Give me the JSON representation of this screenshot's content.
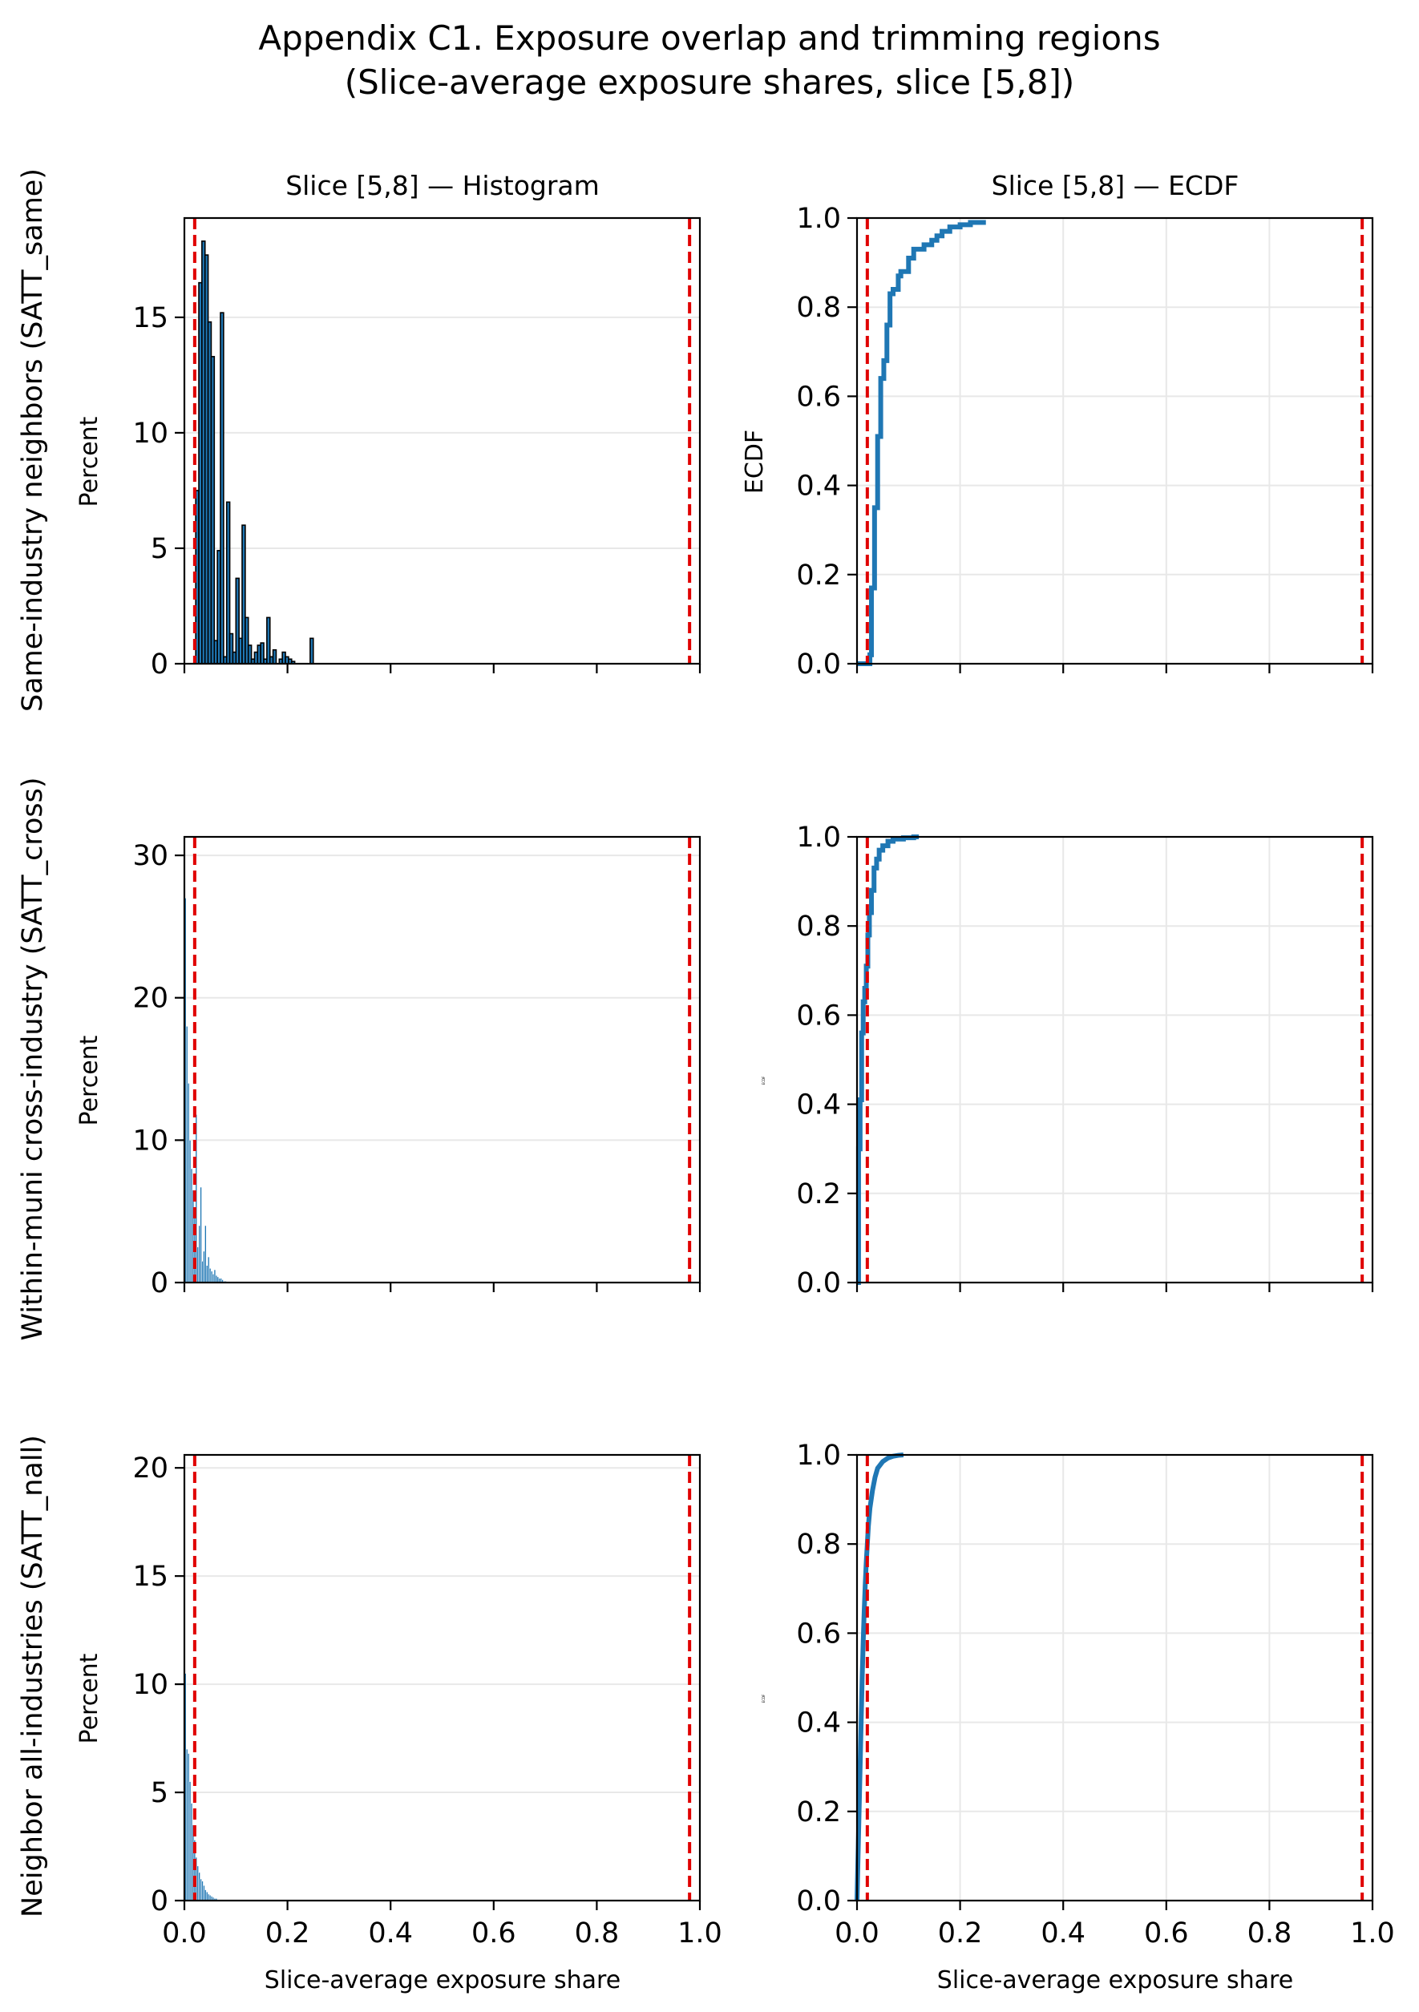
{
  "title_lines": [
    "Appendix C1. Exposure overlap and trimming regions",
    "(Slice-average exposure shares, slice [5,8])"
  ],
  "column_titles": [
    "Slice [5,8] — Histogram",
    "Slice [5,8] — ECDF"
  ],
  "row_labels": [
    "Same-industry neighbors (SATT_same)",
    "Within-muni cross-industry (SATT_cross)",
    "Neighbor all-industries (SATT_nall)"
  ],
  "axis_labels": {
    "hist_y": "Percent",
    "ecdf_y": "ECDF",
    "ecdf_y_small": "ECDF",
    "x": "Slice-average exposure share"
  },
  "colors": {
    "bar": "#1f77b4",
    "bar_edge": "#000000",
    "line": "#1f77b4",
    "trim": "#e00000",
    "grid": "#e8e8e8"
  },
  "chart_data": [
    {
      "panel": "same-histogram",
      "type": "bar",
      "title": "Slice [5,8] — Histogram",
      "xlabel": "",
      "ylabel": "Percent",
      "xlim": [
        0,
        1.0
      ],
      "ylim": [
        0,
        19.3
      ],
      "xticks": [
        "0.0",
        "0.2",
        "0.4",
        "0.6",
        "0.8",
        "1.0"
      ],
      "show_xtick_labels": false,
      "yticks": [
        0,
        5,
        10,
        15
      ],
      "bin_width": 0.006,
      "edgecolor": true,
      "x": [
        0.025,
        0.031,
        0.037,
        0.043,
        0.049,
        0.055,
        0.061,
        0.067,
        0.073,
        0.079,
        0.085,
        0.091,
        0.097,
        0.103,
        0.109,
        0.115,
        0.121,
        0.127,
        0.133,
        0.139,
        0.145,
        0.151,
        0.157,
        0.163,
        0.169,
        0.175,
        0.181,
        0.187,
        0.193,
        0.199,
        0.205,
        0.211,
        0.217,
        0.223,
        0.229,
        0.235,
        0.241,
        0.247
      ],
      "values": [
        7.5,
        16.5,
        18.3,
        17.7,
        14.8,
        13.3,
        1.0,
        4.9,
        15.2,
        0.3,
        7.0,
        1.3,
        0.5,
        3.7,
        1.1,
        6.0,
        2.0,
        0.8,
        0.2,
        0.5,
        0.8,
        0.9,
        0.2,
        2.0,
        0.3,
        0.6,
        0,
        0.2,
        0.5,
        0.3,
        0.2,
        0.1,
        0,
        0,
        0,
        0,
        0,
        1.1
      ],
      "trim_lines": [
        0.02,
        0.98
      ]
    },
    {
      "panel": "same-ecdf",
      "type": "line",
      "title": "Slice [5,8] — ECDF",
      "xlabel": "",
      "ylabel": "ECDF",
      "xlim": [
        0,
        1.0
      ],
      "ylim": [
        0,
        1.0
      ],
      "xticks": [
        "0.0",
        "0.2",
        "0.4",
        "0.6",
        "0.8",
        "1.0"
      ],
      "show_xtick_labels": false,
      "yticks": [
        "0.0",
        "0.2",
        "0.4",
        "0.6",
        "0.8",
        "1.0"
      ],
      "step": true,
      "x": [
        0.0,
        0.025,
        0.028,
        0.034,
        0.04,
        0.046,
        0.052,
        0.058,
        0.064,
        0.07,
        0.08,
        0.085,
        0.09,
        0.1,
        0.11,
        0.13,
        0.145,
        0.155,
        0.165,
        0.17,
        0.18,
        0.19,
        0.2,
        0.22,
        0.245,
        0.25
      ],
      "values": [
        0.0,
        0.02,
        0.17,
        0.35,
        0.51,
        0.64,
        0.68,
        0.76,
        0.83,
        0.84,
        0.87,
        0.88,
        0.88,
        0.91,
        0.93,
        0.94,
        0.95,
        0.96,
        0.97,
        0.97,
        0.98,
        0.98,
        0.985,
        0.99,
        0.99,
        0.99
      ],
      "trim_lines": [
        0.02,
        0.98
      ]
    },
    {
      "panel": "cross-histogram",
      "type": "bar",
      "title": "",
      "xlabel": "",
      "ylabel": "Percent",
      "xlim": [
        0,
        1.0
      ],
      "ylim": [
        0,
        31.3
      ],
      "xticks": [
        "0.0",
        "0.2",
        "0.4",
        "0.6",
        "0.8",
        "1.0"
      ],
      "show_xtick_labels": false,
      "yticks": [
        0,
        10,
        20,
        30
      ],
      "bin_width": 0.003,
      "edgecolor": false,
      "x": [
        0.002,
        0.005,
        0.008,
        0.011,
        0.014,
        0.017,
        0.02,
        0.023,
        0.026,
        0.029,
        0.032,
        0.035,
        0.038,
        0.041,
        0.044,
        0.047,
        0.05,
        0.053,
        0.056,
        0.059,
        0.062,
        0.065,
        0.068,
        0.071,
        0.074,
        0.077,
        0.08
      ],
      "values": [
        27.0,
        18.0,
        14.0,
        10.0,
        8.0,
        6.5,
        5.0,
        11.8,
        2.5,
        4.0,
        6.7,
        1.5,
        2.2,
        4.0,
        1.2,
        1.8,
        1.0,
        0.8,
        0.6,
        0.9,
        0.5,
        0.4,
        0.3,
        0.3,
        0.2,
        0.1,
        0.1
      ],
      "trim_lines": [
        0.02,
        0.98
      ]
    },
    {
      "panel": "cross-ecdf",
      "type": "line",
      "title": "",
      "xlabel": "",
      "ylabel": "ECDF",
      "xlim": [
        0,
        1.0
      ],
      "ylim": [
        0,
        1.0
      ],
      "xticks": [
        "0.0",
        "0.2",
        "0.4",
        "0.6",
        "0.8",
        "1.0"
      ],
      "show_xtick_labels": false,
      "yticks": [
        "0.0",
        "0.2",
        "0.4",
        "0.6",
        "0.8",
        "1.0"
      ],
      "step": true,
      "x": [
        0.0,
        0.003,
        0.006,
        0.009,
        0.012,
        0.015,
        0.018,
        0.021,
        0.024,
        0.028,
        0.033,
        0.038,
        0.043,
        0.05,
        0.06,
        0.07,
        0.09,
        0.11,
        0.12
      ],
      "values": [
        0.0,
        0.3,
        0.41,
        0.56,
        0.63,
        0.66,
        0.71,
        0.78,
        0.83,
        0.88,
        0.93,
        0.95,
        0.97,
        0.98,
        0.99,
        0.995,
        0.998,
        1.0,
        1.0
      ],
      "trim_lines": [
        0.02,
        0.98
      ]
    },
    {
      "panel": "nall-histogram",
      "type": "bar",
      "title": "",
      "xlabel": "Slice-average exposure share",
      "ylabel": "Percent",
      "xlim": [
        0,
        1.0
      ],
      "ylim": [
        0,
        20.6
      ],
      "xticks": [
        "0.0",
        "0.2",
        "0.4",
        "0.6",
        "0.8",
        "1.0"
      ],
      "show_xtick_labels": true,
      "yticks": [
        0,
        5,
        10,
        15,
        20
      ],
      "bin_width": 0.003,
      "edgecolor": false,
      "x": [
        0.002,
        0.005,
        0.008,
        0.011,
        0.014,
        0.017,
        0.02,
        0.023,
        0.026,
        0.029,
        0.032,
        0.035,
        0.038,
        0.041,
        0.044,
        0.047,
        0.05,
        0.053,
        0.056,
        0.059,
        0.062
      ],
      "values": [
        10.5,
        7.0,
        6.8,
        5.5,
        4.5,
        3.5,
        2.8,
        2.0,
        1.6,
        1.3,
        1.0,
        0.9,
        0.7,
        0.5,
        0.4,
        0.3,
        0.25,
        0.2,
        0.15,
        0.1,
        0.1
      ],
      "trim_lines": [
        0.02,
        0.98
      ]
    },
    {
      "panel": "nall-ecdf",
      "type": "line",
      "title": "",
      "xlabel": "Slice-average exposure share",
      "ylabel": "ECDF",
      "xlim": [
        0,
        1.0
      ],
      "ylim": [
        0,
        1.0
      ],
      "xticks": [
        "0.0",
        "0.2",
        "0.4",
        "0.6",
        "0.8",
        "1.0"
      ],
      "show_xtick_labels": true,
      "yticks": [
        "0.0",
        "0.2",
        "0.4",
        "0.6",
        "0.8",
        "1.0"
      ],
      "step": false,
      "x": [
        0.0,
        0.002,
        0.004,
        0.006,
        0.008,
        0.01,
        0.012,
        0.014,
        0.016,
        0.018,
        0.02,
        0.022,
        0.025,
        0.03,
        0.035,
        0.04,
        0.05,
        0.06,
        0.07,
        0.08,
        0.09
      ],
      "values": [
        0.0,
        0.1,
        0.2,
        0.3,
        0.4,
        0.5,
        0.58,
        0.65,
        0.71,
        0.76,
        0.8,
        0.84,
        0.88,
        0.92,
        0.95,
        0.97,
        0.985,
        0.993,
        0.997,
        0.999,
        1.0
      ],
      "trim_lines": [
        0.02,
        0.98
      ]
    }
  ]
}
